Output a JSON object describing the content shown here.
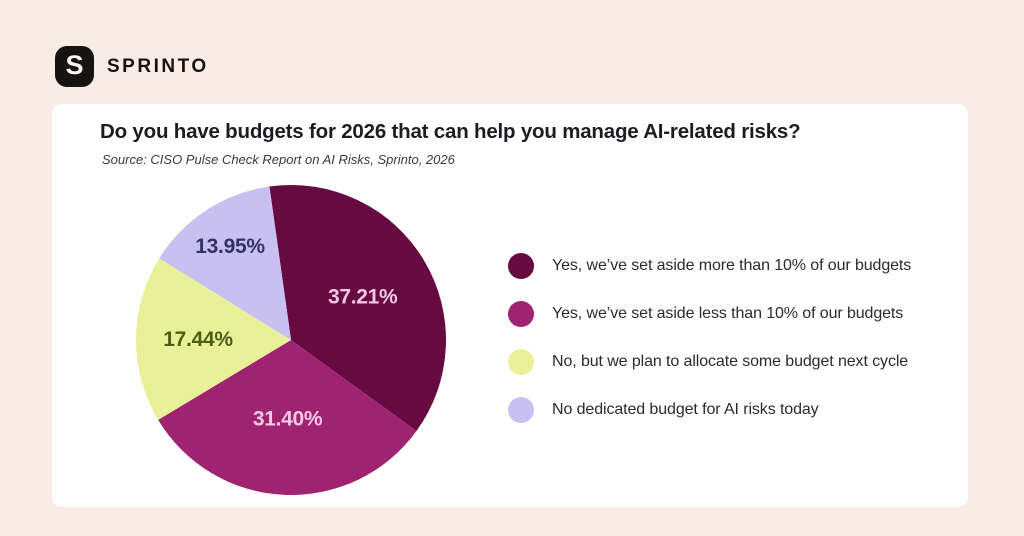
{
  "brand": {
    "logo_mark": "S",
    "name": "SPRINTO"
  },
  "card": {
    "title": "Do you have budgets for 2026 that can help you manage AI-related risks?",
    "source": "Source: CISO Pulse Check Report on AI Risks, Sprinto, 2026"
  },
  "chart_data": {
    "type": "pie",
    "title": "Do you have budgets for 2026 that can help you manage AI-related risks?",
    "source": "Source: CISO Pulse Check Report on AI Risks, Sprinto, 2026",
    "start_angle_deg": -8,
    "legend_position": "right",
    "slices": [
      {
        "label": "Yes, we’ve set aside more than 10% of our budgets",
        "value": 37.21,
        "display": "37.21%",
        "color": "#660a41",
        "label_color": "#f3c8e5",
        "label_r": 0.54
      },
      {
        "label": "Yes, we’ve set aside less than 10% of our budgets",
        "value": 31.4,
        "display": "31.40%",
        "color": "#a02371",
        "label_color": "#f3c8e5",
        "label_r": 0.51
      },
      {
        "label": "No, but we plan to allocate some budget next cycle",
        "value": 17.44,
        "display": "17.44%",
        "color": "#e8f197",
        "label_color": "#4c5c15",
        "label_r": 0.6
      },
      {
        "label": "No dedicated budget for AI risks today",
        "value": 13.95,
        "display": "13.95%",
        "color": "#c9c0f2",
        "label_color": "#333169",
        "label_r": 0.72
      }
    ]
  }
}
